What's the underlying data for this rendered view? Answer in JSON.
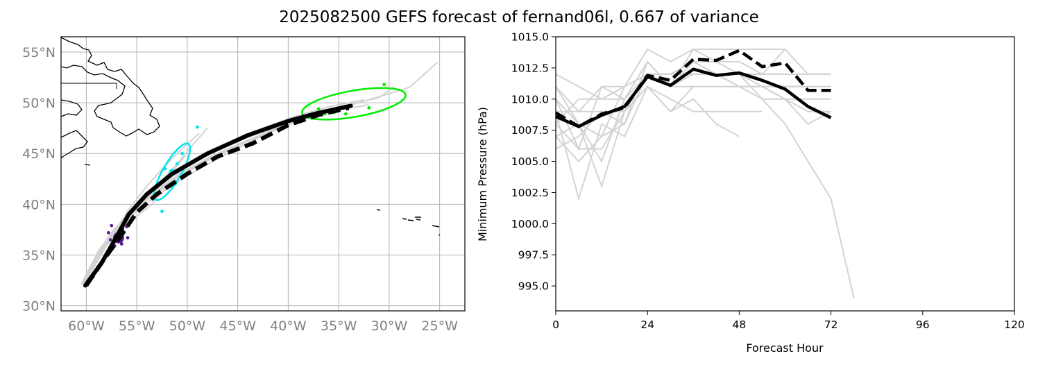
{
  "title": "2025082500 GEFS forecast of fernand06l, 0.667 of variance",
  "chart_data": [
    {
      "type": "map-track",
      "name": "track-map",
      "lon_range": [
        -62.5,
        -22.5
      ],
      "lat_range": [
        29.5,
        56.5
      ],
      "lon_ticks": [
        -60,
        -55,
        -50,
        -45,
        -40,
        -35,
        -30,
        -25
      ],
      "lat_ticks": [
        30,
        35,
        40,
        45,
        50,
        55
      ],
      "lon_tick_labels": [
        "60°W",
        "55°W",
        "50°W",
        "45°W",
        "40°W",
        "35°W",
        "30°W",
        "25°W"
      ],
      "lat_tick_labels": [
        "30°N",
        "35°N",
        "40°N",
        "45°N",
        "50°N",
        "55°N"
      ],
      "grid": true,
      "members": [
        [
          [
            -60.2,
            32.5
          ],
          [
            -58.5,
            35.8
          ],
          [
            -56.0,
            38.8
          ],
          [
            -53.5,
            41.2
          ],
          [
            -50.5,
            43.5
          ],
          [
            -47.0,
            45.3
          ],
          [
            -43.5,
            46.8
          ],
          [
            -39.5,
            48.3
          ],
          [
            -35.5,
            49.5
          ],
          [
            -31.0,
            50.5
          ],
          [
            -29.5,
            51.6
          ]
        ],
        [
          [
            -60.4,
            32.3
          ],
          [
            -58.8,
            35.4
          ],
          [
            -56.5,
            38.2
          ],
          [
            -54.0,
            40.5
          ],
          [
            -51.5,
            42.4
          ],
          [
            -48.5,
            44.2
          ],
          [
            -45.0,
            45.8
          ],
          [
            -41.0,
            47.5
          ],
          [
            -37.5,
            48.8
          ],
          [
            -33.0,
            50.0
          ],
          [
            -28.0,
            51.5
          ],
          [
            -25.2,
            54.0
          ]
        ],
        [
          [
            -60.1,
            32.4
          ],
          [
            -58.0,
            35.9
          ],
          [
            -55.5,
            39.2
          ],
          [
            -53.0,
            41.8
          ],
          [
            -51.0,
            44.0
          ],
          [
            -49.5,
            45.8
          ],
          [
            -48.0,
            47.5
          ]
        ],
        [
          [
            -60.3,
            32.2
          ],
          [
            -58.6,
            35.6
          ],
          [
            -56.8,
            37.6
          ],
          [
            -54.5,
            39.8
          ],
          [
            -52.0,
            41.5
          ],
          [
            -49.0,
            43.4
          ],
          [
            -46.0,
            45.0
          ],
          [
            -42.5,
            46.8
          ],
          [
            -39.0,
            48.2
          ],
          [
            -35.0,
            49.3
          ],
          [
            -32.0,
            49.8
          ]
        ],
        [
          [
            -60.0,
            32.6
          ],
          [
            -57.9,
            36.2
          ],
          [
            -55.8,
            39.5
          ],
          [
            -54.0,
            41.8
          ],
          [
            -52.2,
            43.8
          ],
          [
            -50.5,
            45.5
          ],
          [
            -48.8,
            47.0
          ]
        ],
        [
          [
            -60.5,
            32.1
          ],
          [
            -59.0,
            35.0
          ],
          [
            -57.0,
            37.0
          ],
          [
            -55.0,
            38.8
          ],
          [
            -53.5,
            40.0
          ],
          [
            -52.0,
            41.8
          ],
          [
            -50.5,
            43.5
          ]
        ],
        [
          [
            -60.2,
            32.4
          ],
          [
            -58.4,
            35.7
          ],
          [
            -56.2,
            38.5
          ],
          [
            -53.8,
            40.8
          ],
          [
            -50.8,
            43.0
          ],
          [
            -47.5,
            44.8
          ],
          [
            -44.0,
            46.3
          ],
          [
            -40.5,
            47.8
          ],
          [
            -37.0,
            49.0
          ],
          [
            -34.0,
            49.6
          ]
        ],
        [
          [
            -60.3,
            32.3
          ],
          [
            -58.7,
            35.5
          ],
          [
            -56.7,
            38.0
          ],
          [
            -54.3,
            40.2
          ],
          [
            -51.8,
            42.0
          ],
          [
            -48.8,
            43.9
          ],
          [
            -45.5,
            45.5
          ],
          [
            -42.0,
            47.2
          ],
          [
            -38.5,
            48.5
          ],
          [
            -35.5,
            49.0
          ]
        ],
        [
          [
            -60.1,
            32.5
          ],
          [
            -58.2,
            35.9
          ],
          [
            -56.0,
            39.0
          ],
          [
            -53.2,
            41.6
          ],
          [
            -50.0,
            44.0
          ],
          [
            -46.5,
            45.8
          ],
          [
            -43.0,
            47.3
          ],
          [
            -39.5,
            48.6
          ],
          [
            -36.0,
            49.6
          ],
          [
            -32.5,
            50.3
          ]
        ],
        [
          [
            -60.4,
            32.2
          ],
          [
            -58.9,
            35.2
          ],
          [
            -57.3,
            37.5
          ],
          [
            -55.5,
            39.2
          ],
          [
            -53.6,
            40.8
          ],
          [
            -51.8,
            42.8
          ],
          [
            -50.2,
            44.8
          ]
        ]
      ],
      "ensemble_mean": [
        [
          -60.1,
          32.0
        ],
        [
          -58.5,
          34.2
        ],
        [
          -57.0,
          36.8
        ],
        [
          -55.8,
          39.0
        ],
        [
          -54.0,
          41.0
        ],
        [
          -51.5,
          43.0
        ],
        [
          -48.0,
          45.0
        ],
        [
          -44.0,
          46.8
        ],
        [
          -40.0,
          48.2
        ],
        [
          -37.0,
          49.0
        ],
        [
          -33.8,
          49.7
        ]
      ],
      "deterministic_track": [
        [
          -60.0,
          32.0
        ],
        [
          -58.3,
          34.5
        ],
        [
          -56.5,
          37.0
        ],
        [
          -55.0,
          39.2
        ],
        [
          -53.0,
          41.0
        ],
        [
          -50.0,
          43.0
        ],
        [
          -47.0,
          44.7
        ],
        [
          -43.5,
          46.0
        ],
        [
          -40.0,
          47.8
        ],
        [
          -37.0,
          48.8
        ],
        [
          -34.0,
          49.5
        ]
      ],
      "clusters": [
        {
          "name": "purple-cluster",
          "color": "#5b1a8b",
          "center": [
            -56.8,
            36.7
          ],
          "points": [
            [
              -57.5,
              37.9
            ],
            [
              -56.4,
              37.5
            ],
            [
              -55.9,
              36.7
            ],
            [
              -57.6,
              36.5
            ],
            [
              -56.5,
              36.1
            ],
            [
              -57.2,
              35.9
            ],
            [
              -56.0,
              37.8
            ],
            [
              -57.8,
              37.2
            ]
          ]
        },
        {
          "name": "cyan-cluster",
          "color": "#00e5ee",
          "center": [
            -51.5,
            43.2
          ],
          "ellipse": {
            "center": [
              -51.5,
              43.2
            ],
            "semi_major_deg": 3.2,
            "semi_minor_deg": 0.9,
            "angle_deg": 60
          },
          "points": [
            [
              -49.0,
              47.6
            ],
            [
              -52.5,
              39.3
            ],
            [
              -51.0,
              44.0
            ],
            [
              -52.0,
              42.5
            ],
            [
              -50.5,
              45.0
            ],
            [
              -52.2,
              43.5
            ],
            [
              -51.2,
              42.0
            ]
          ]
        },
        {
          "name": "green-cluster",
          "color": "#00ee00",
          "center": [
            -35.5,
            49.2
          ],
          "ellipse": {
            "center": [
              -33.5,
              49.9
            ],
            "semi_major_deg": 5.2,
            "semi_minor_deg": 1.3,
            "angle_deg": 10
          },
          "points": [
            [
              -34.0,
              49.6
            ],
            [
              -37.0,
              49.4
            ],
            [
              -32.0,
              49.5
            ],
            [
              -30.5,
              51.8
            ],
            [
              -34.3,
              48.9
            ],
            [
              -36.4,
              48.9
            ]
          ]
        }
      ]
    },
    {
      "type": "line",
      "name": "pressure-chart",
      "xlabel": "Forecast Hour",
      "ylabel": "Minimum Pressure (hPa)",
      "xlim": [
        0,
        120
      ],
      "ylim": [
        993.0,
        1015.0
      ],
      "x_ticks": [
        0,
        24,
        48,
        72,
        96,
        120
      ],
      "x_tick_labels": [
        "0",
        "24",
        "48",
        "72",
        "96",
        "120"
      ],
      "y_ticks": [
        995.0,
        997.5,
        1000.0,
        1002.5,
        1005.0,
        1007.5,
        1010.0,
        1012.5,
        1015.0
      ],
      "y_tick_labels": [
        "995.0",
        "997.5",
        "1000.0",
        "1002.5",
        "1005.0",
        "1007.5",
        "1010.0",
        "1012.5",
        "1015.0"
      ],
      "x": [
        0,
        6,
        12,
        18,
        24,
        30,
        36,
        42,
        48,
        54,
        60,
        66,
        72,
        78
      ],
      "members": [
        [
          1012,
          1011,
          1010,
          1011,
          1014,
          1013,
          1014,
          1014,
          1014,
          1014,
          1014,
          1012,
          1012,
          null
        ],
        [
          1011,
          1009,
          1011,
          1010,
          1012,
          1011,
          1014,
          1013,
          1013,
          1012,
          1014,
          null,
          null,
          null
        ],
        [
          1010,
          1008,
          1003,
          1009,
          1012,
          1012,
          1012,
          1012,
          1012,
          1012,
          1012,
          1012,
          1012,
          null
        ],
        [
          1009,
          1002,
          1008,
          1007,
          1011,
          1009,
          1011,
          1011,
          1011,
          1011,
          1010,
          1009,
          1009,
          null
        ],
        [
          1008,
          1006,
          1006,
          1009,
          1011,
          1010,
          1009,
          1009,
          1009,
          1009,
          null,
          null,
          null,
          null
        ],
        [
          1007,
          1005,
          1007,
          1008,
          1013,
          1011,
          1011,
          1011,
          1011,
          1010,
          1010,
          1008,
          1009,
          null
        ],
        [
          1006,
          1007,
          1009,
          1009,
          1011,
          1009,
          1010,
          1008,
          1007,
          null,
          null,
          null,
          null,
          null
        ],
        [
          1008,
          1010,
          1010,
          1010,
          1012,
          1012,
          1013,
          1012,
          1012,
          1011,
          1010,
          1010,
          1010,
          null
        ],
        [
          1011,
          1008,
          1005,
          1010,
          1013,
          1011,
          1012,
          1012,
          1012,
          1012,
          1012,
          1012,
          1012,
          null
        ],
        [
          1010,
          1006,
          1011,
          1011,
          1012,
          1012,
          1013,
          1013,
          1012,
          1010,
          1008,
          1005,
          1002,
          994
        ],
        [
          1009,
          1009,
          1009,
          1008,
          1012,
          1011,
          1013,
          1012,
          1011,
          1011,
          1011,
          1011,
          1011,
          null
        ],
        [
          1007,
          1008,
          1007,
          1011,
          1012,
          1012,
          1012,
          1012,
          1011,
          1011,
          1011,
          1011,
          1011,
          null
        ]
      ],
      "ensemble_mean": [
        1008.6,
        1007.8,
        1008.7,
        1009.4,
        1011.8,
        1011.1,
        1012.4,
        1011.9,
        1012.1,
        1011.5,
        1010.8,
        1009.4,
        1008.5,
        null
      ],
      "deterministic": [
        1008.9,
        1007.8,
        1008.8,
        1009.3,
        1011.9,
        1011.5,
        1013.2,
        1013.1,
        1013.9,
        1012.6,
        1012.9,
        1010.7,
        1010.7,
        null
      ]
    }
  ]
}
